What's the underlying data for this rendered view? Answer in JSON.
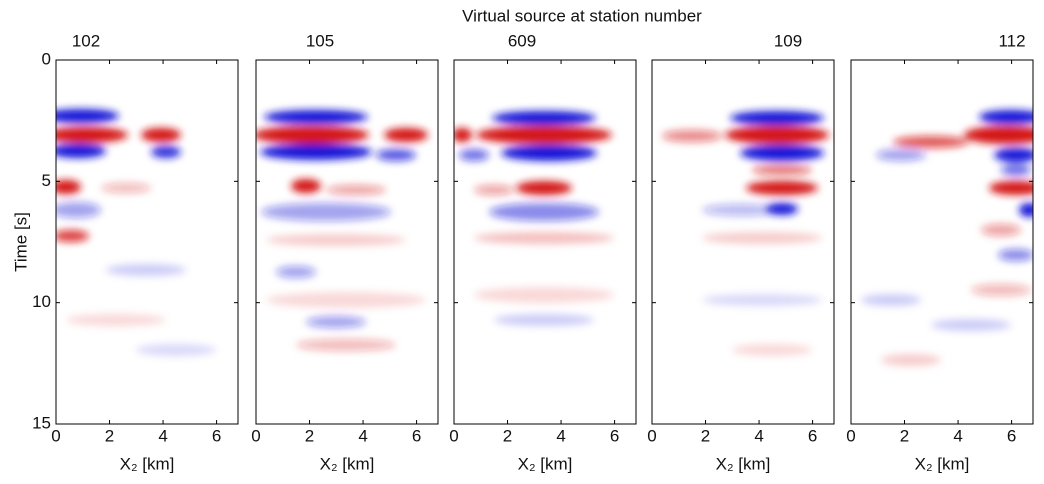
{
  "title": "Virtual source at station number",
  "chart_data": [
    {
      "type": "image",
      "title": "102",
      "xlabel": "X₂ [km]",
      "ylabel": "Time [s]",
      "xlim": [
        0,
        6.8
      ],
      "xticks": [
        0,
        2,
        4,
        6
      ],
      "ylim": [
        15,
        0
      ],
      "yticks": [
        0,
        5,
        10,
        15
      ],
      "colors": [
        "#d41414",
        "#1414d8"
      ]
    },
    {
      "type": "image",
      "title": "105",
      "xlabel": "X₂ [km]",
      "xlim": [
        0,
        6.8
      ],
      "xticks": [
        0,
        2,
        4,
        6
      ],
      "ylim": [
        15,
        0
      ],
      "yticks": [
        0,
        5,
        10,
        15
      ],
      "colors": [
        "#d41414",
        "#1414d8"
      ]
    },
    {
      "type": "image",
      "title": "609",
      "xlabel": "X₂ [km]",
      "xlim": [
        0,
        6.8
      ],
      "xticks": [
        0,
        2,
        4,
        6
      ],
      "ylim": [
        15,
        0
      ],
      "yticks": [
        0,
        5,
        10,
        15
      ],
      "colors": [
        "#d41414",
        "#1414d8"
      ]
    },
    {
      "type": "image",
      "title": "109",
      "xlabel": "X₂ [km]",
      "xlim": [
        0,
        6.8
      ],
      "xticks": [
        0,
        2,
        4,
        6
      ],
      "ylim": [
        15,
        0
      ],
      "yticks": [
        0,
        5,
        10,
        15
      ],
      "colors": [
        "#d41414",
        "#1414d8"
      ]
    },
    {
      "type": "image",
      "title": "112",
      "xlabel": "X₂ [km]",
      "xlim": [
        0,
        6.8
      ],
      "xticks": [
        0,
        2,
        4,
        6
      ],
      "ylim": [
        15,
        0
      ],
      "yticks": [
        0,
        5,
        10,
        15
      ],
      "colors": [
        "#d41414",
        "#1414d8"
      ]
    }
  ]
}
